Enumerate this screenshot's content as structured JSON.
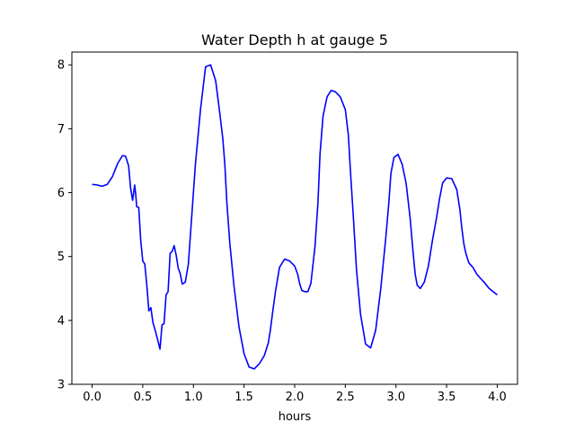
{
  "chart_data": {
    "type": "line",
    "title": "Water Depth h at gauge 5",
    "xlabel": "hours",
    "ylabel": "",
    "xlim": [
      -0.2,
      4.2
    ],
    "ylim": [
      3,
      8.2
    ],
    "xticks": [
      0.0,
      0.5,
      1.0,
      1.5,
      2.0,
      2.5,
      3.0,
      3.5,
      4.0
    ],
    "xtick_labels": [
      "0.0",
      "0.5",
      "1.0",
      "1.5",
      "2.0",
      "2.5",
      "3.0",
      "3.5",
      "4.0"
    ],
    "yticks": [
      3,
      4,
      5,
      6,
      7,
      8
    ],
    "ytick_labels": [
      "3",
      "4",
      "5",
      "6",
      "7",
      "8"
    ],
    "grid": false,
    "series": [
      {
        "color": "#0000ff",
        "x": [
          0.0,
          0.05,
          0.1,
          0.15,
          0.2,
          0.25,
          0.3,
          0.33,
          0.36,
          0.38,
          0.4,
          0.42,
          0.43,
          0.44,
          0.46,
          0.48,
          0.5,
          0.52,
          0.54,
          0.56,
          0.58,
          0.6,
          0.62,
          0.65,
          0.67,
          0.69,
          0.71,
          0.73,
          0.75,
          0.77,
          0.79,
          0.81,
          0.83,
          0.85,
          0.87,
          0.89,
          0.92,
          0.95,
          0.98,
          1.02,
          1.07,
          1.12,
          1.17,
          1.22,
          1.26,
          1.29,
          1.31,
          1.33,
          1.36,
          1.4,
          1.45,
          1.5,
          1.55,
          1.6,
          1.65,
          1.7,
          1.74,
          1.76,
          1.78,
          1.81,
          1.85,
          1.9,
          1.95,
          2.0,
          2.03,
          2.05,
          2.07,
          2.1,
          2.13,
          2.16,
          2.2,
          2.23,
          2.25,
          2.28,
          2.32,
          2.36,
          2.4,
          2.45,
          2.5,
          2.53,
          2.55,
          2.58,
          2.61,
          2.65,
          2.7,
          2.75,
          2.8,
          2.85,
          2.9,
          2.93,
          2.95,
          2.98,
          3.02,
          3.06,
          3.1,
          3.14,
          3.17,
          3.19,
          3.21,
          3.24,
          3.28,
          3.32,
          3.36,
          3.4,
          3.43,
          3.46,
          3.5,
          3.55,
          3.6,
          3.63,
          3.65,
          3.67,
          3.69,
          3.72,
          3.76,
          3.8,
          3.84,
          3.88,
          3.92,
          3.96,
          4.0
        ],
        "y": [
          6.13,
          6.12,
          6.1,
          6.13,
          6.25,
          6.45,
          6.58,
          6.57,
          6.42,
          6.07,
          5.88,
          6.12,
          5.98,
          5.78,
          5.77,
          5.25,
          4.93,
          4.88,
          4.55,
          4.15,
          4.2,
          3.97,
          3.86,
          3.68,
          3.55,
          3.93,
          3.95,
          4.4,
          4.45,
          5.05,
          5.08,
          5.17,
          5.02,
          4.82,
          4.73,
          4.57,
          4.6,
          4.88,
          5.55,
          6.45,
          7.3,
          7.97,
          8.0,
          7.75,
          7.25,
          6.85,
          6.45,
          5.85,
          5.2,
          4.55,
          3.9,
          3.48,
          3.27,
          3.24,
          3.32,
          3.45,
          3.65,
          3.85,
          4.1,
          4.45,
          4.83,
          4.96,
          4.93,
          4.85,
          4.72,
          4.57,
          4.47,
          4.45,
          4.45,
          4.58,
          5.15,
          5.85,
          6.6,
          7.2,
          7.5,
          7.6,
          7.58,
          7.5,
          7.3,
          6.9,
          6.35,
          5.6,
          4.8,
          4.1,
          3.63,
          3.57,
          3.85,
          4.5,
          5.3,
          5.85,
          6.3,
          6.55,
          6.6,
          6.45,
          6.15,
          5.6,
          5.05,
          4.72,
          4.55,
          4.5,
          4.6,
          4.85,
          5.25,
          5.6,
          5.9,
          6.15,
          6.23,
          6.22,
          6.05,
          5.75,
          5.45,
          5.2,
          5.05,
          4.9,
          4.83,
          4.72,
          4.65,
          4.58,
          4.5,
          4.45,
          4.4
        ]
      }
    ]
  }
}
